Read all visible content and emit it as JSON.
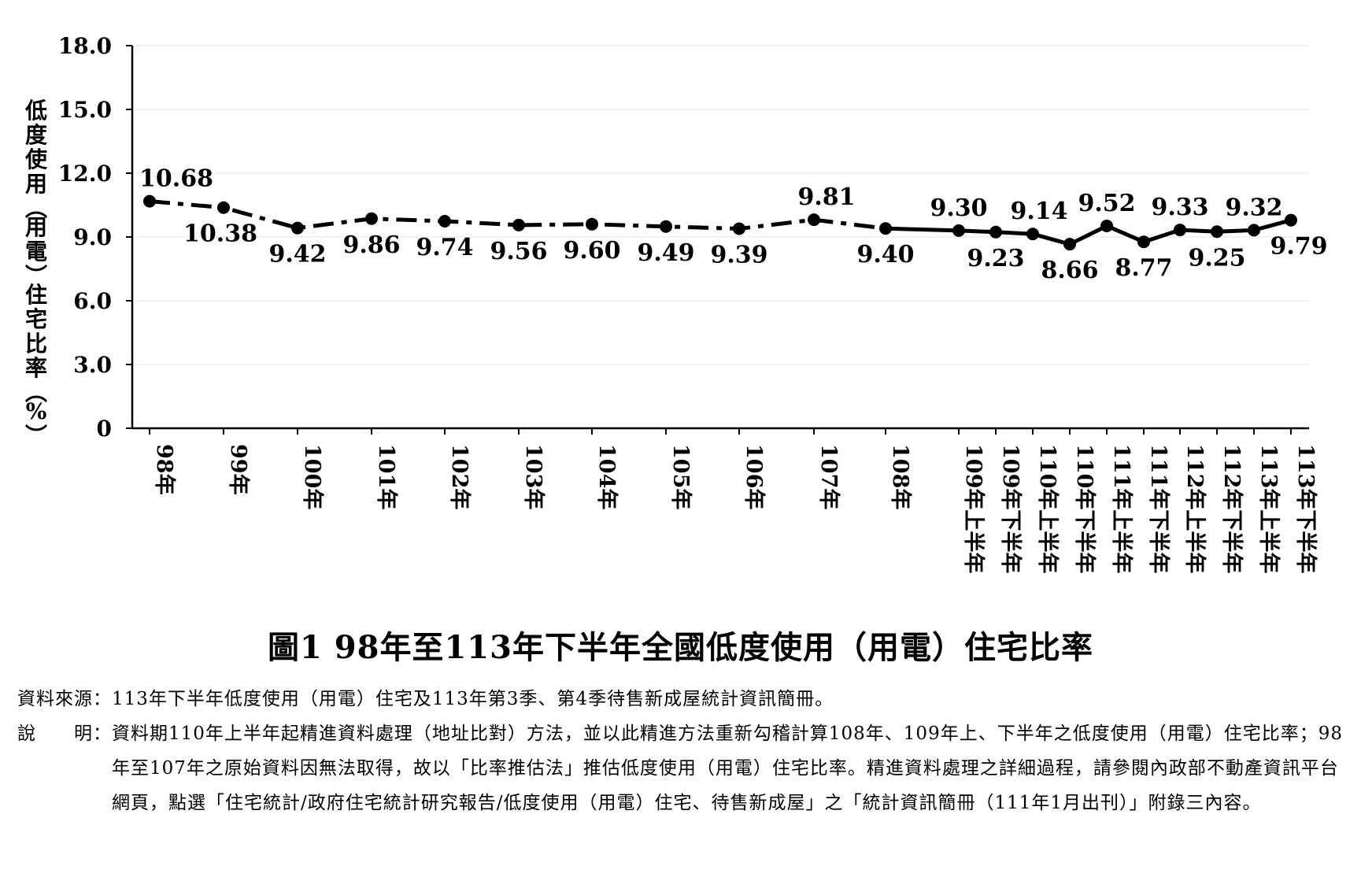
{
  "chart_data": {
    "type": "line",
    "title": "圖1 98年至113年下半年全國低度使用（用電）住宅比率",
    "ylabel": "低度使用(用電)住宅比率(%)",
    "xlabel": "",
    "ylim": [
      0,
      18
    ],
    "yticks": [
      "0",
      "3.0",
      "6.0",
      "9.0",
      "12.0",
      "15.0",
      "18.0"
    ],
    "grid": "horizontal",
    "categories": [
      "98年",
      "99年",
      "100年",
      "101年",
      "102年",
      "103年",
      "104年",
      "105年",
      "106年",
      "107年",
      "108年",
      "109年上半年",
      "109年下半年",
      "110年上半年",
      "110年下半年",
      "111年上半年",
      "111年下半年",
      "112年上半年",
      "112年下半年",
      "113年上半年",
      "113年下半年"
    ],
    "values": [
      10.68,
      10.38,
      9.42,
      9.86,
      9.74,
      9.56,
      9.6,
      9.49,
      9.39,
      9.81,
      9.4,
      9.3,
      9.23,
      9.14,
      8.66,
      9.52,
      8.77,
      9.33,
      9.25,
      9.32,
      9.79
    ],
    "labels": [
      "10.68",
      "10.38",
      "9.42",
      "9.86",
      "9.74",
      "9.56",
      "9.60",
      "9.49",
      "9.39",
      "9.81",
      "9.40",
      "9.30",
      "9.23",
      "9.14",
      "8.66",
      "9.52",
      "8.77",
      "9.33",
      "9.25",
      "9.32",
      "9.79"
    ],
    "line_style": "dash-dot for 98年–108年 (estimated), solid thereafter",
    "color": "#000000"
  },
  "notes": {
    "source_label": "資料來源：",
    "source_text": "113年下半年低度使用（用電）住宅及113年第3季、第4季待售新成屋統計資訊簡冊。",
    "desc_label": "說　　明：",
    "desc_text": "資料期110年上半年起精進資料處理（地址比對）方法，並以此精進方法重新勾稽計算108年、109年上、下半年之低度使用（用電）住宅比率；98年至107年之原始資料因無法取得，故以「比率推估法」推估低度使用（用電）住宅比率。精進資料處理之詳細過程，請參閱內政部不動產資訊平台網頁，點選「住宅統計/政府住宅統計研究報告/低度使用（用電）住宅、待售新成屋」之「統計資訊簡冊（111年1月出刊）」附錄三內容。"
  }
}
